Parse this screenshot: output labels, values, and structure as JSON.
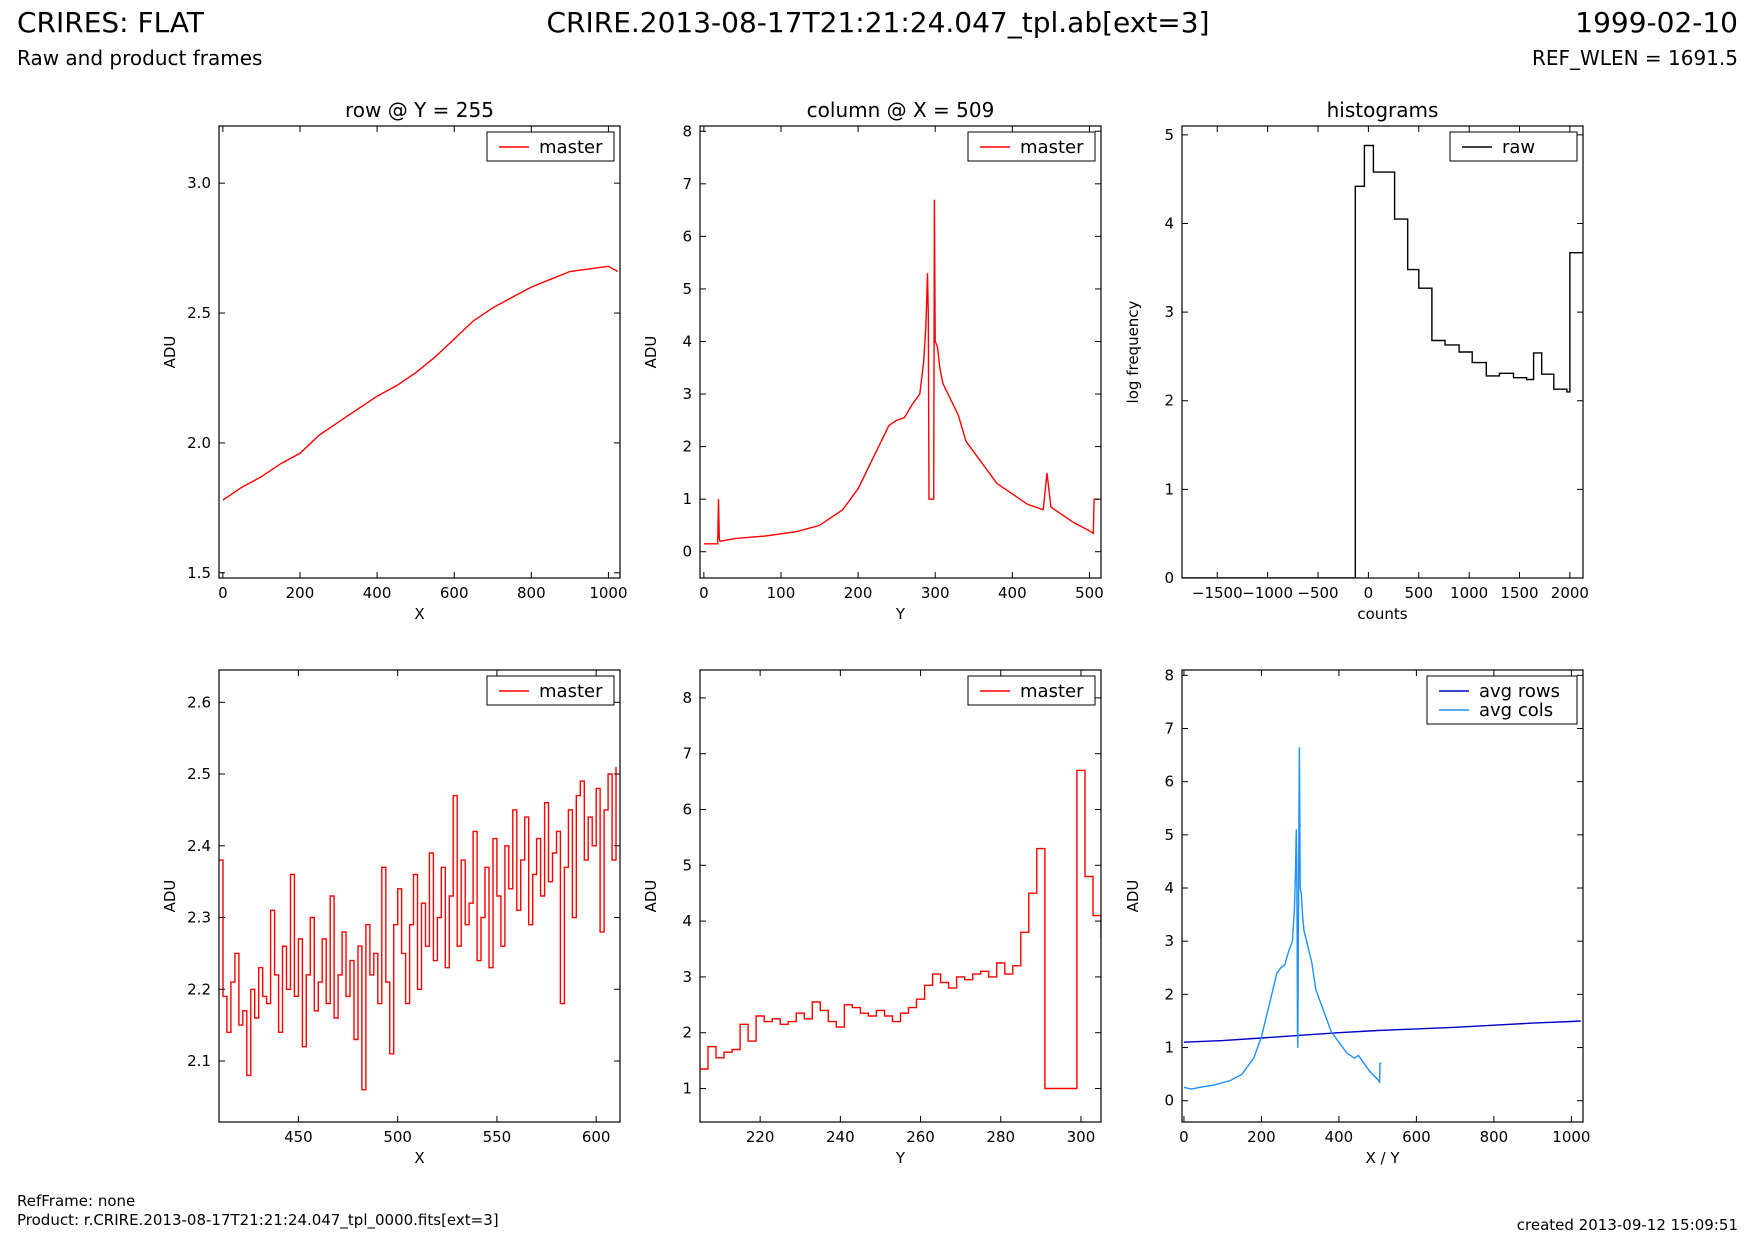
{
  "header": {
    "title_left": "CRIRES: FLAT",
    "subtitle_left": "Raw and product frames",
    "title_center": "CRIRE.2013-08-17T21:21:24.047_tpl.ab[ext=3]",
    "title_right": "1999-02-10",
    "subtitle_right": "REF_WLEN = 1691.5"
  },
  "footer": {
    "refframe": "RefFrame: none",
    "product": "Product: r.CRIRE.2013-08-17T21:21:24.047_tpl_0000.fits[ext=3]",
    "created": "created 2013-09-12 15:09:51"
  },
  "colors": {
    "red": "#ff0000",
    "dark_blue": "#0000cc",
    "light_blue": "#1e90ff",
    "black": "#000000"
  },
  "chart_data": [
    {
      "id": "row-full",
      "type": "line",
      "title": "row @ Y = 255",
      "xlabel": "X",
      "ylabel": "ADU",
      "xlim": [
        -10,
        1030
      ],
      "ylim": [
        1.48,
        3.22
      ],
      "xticks": [
        0,
        200,
        400,
        600,
        800,
        1000
      ],
      "yticks": [
        1.5,
        2.0,
        2.5,
        3.0
      ],
      "ytick_labels": [
        "1.5",
        "2.0",
        "2.5",
        "3.0"
      ],
      "legend_position": "top-right",
      "series": [
        {
          "name": "master",
          "color": "#ff0000",
          "step": false,
          "x": [
            0,
            50,
            100,
            150,
            200,
            250,
            300,
            350,
            400,
            450,
            500,
            550,
            600,
            650,
            700,
            750,
            800,
            850,
            900,
            950,
            1000,
            1024
          ],
          "y": [
            1.78,
            1.83,
            1.87,
            1.92,
            1.96,
            2.03,
            2.08,
            2.13,
            2.18,
            2.22,
            2.27,
            2.33,
            2.4,
            2.47,
            2.52,
            2.56,
            2.6,
            2.63,
            2.66,
            2.67,
            2.68,
            2.66
          ]
        }
      ]
    },
    {
      "id": "col-full",
      "type": "line",
      "title": "column @ X = 509",
      "xlabel": "Y",
      "ylabel": "ADU",
      "xlim": [
        -5,
        515
      ],
      "ylim": [
        -0.5,
        8.1
      ],
      "xticks": [
        0,
        100,
        200,
        300,
        400,
        500
      ],
      "yticks": [
        0,
        1,
        2,
        3,
        4,
        5,
        6,
        7,
        8
      ],
      "legend_position": "top-right",
      "series": [
        {
          "name": "master",
          "color": "#ff0000",
          "step": false,
          "x": [
            0,
            18,
            19,
            20,
            21,
            22,
            40,
            80,
            120,
            150,
            180,
            200,
            220,
            240,
            250,
            260,
            270,
            280,
            285,
            288,
            290,
            291,
            292,
            298,
            299,
            300,
            303,
            306,
            310,
            320,
            330,
            340,
            350,
            360,
            380,
            400,
            420,
            440,
            445,
            450,
            460,
            480,
            500,
            505,
            506,
            510,
            512
          ],
          "y": [
            0.15,
            0.15,
            1.0,
            0.25,
            0.2,
            0.2,
            0.25,
            0.3,
            0.38,
            0.5,
            0.8,
            1.2,
            1.8,
            2.4,
            2.5,
            2.55,
            2.8,
            3.0,
            3.6,
            4.3,
            5.3,
            4.5,
            1.0,
            1.0,
            6.7,
            4.0,
            3.9,
            3.5,
            3.2,
            2.9,
            2.6,
            2.1,
            1.9,
            1.7,
            1.3,
            1.1,
            0.9,
            0.8,
            1.5,
            0.85,
            0.75,
            0.55,
            0.4,
            0.35,
            1.0,
            1.0,
            1.0
          ]
        }
      ]
    },
    {
      "id": "histogram",
      "type": "line",
      "title": "histograms",
      "xlabel": "counts",
      "ylabel": "log frequency",
      "xlim": [
        -1850,
        2130
      ],
      "ylim": [
        0,
        5.1
      ],
      "xticks": [
        -1500,
        -1000,
        -500,
        0,
        500,
        1000,
        1500,
        2000
      ],
      "xtick_labels": [
        "−1500",
        "−1000",
        "−500",
        "0",
        "500",
        "1000",
        "1500",
        "2000"
      ],
      "yticks": [
        0,
        1,
        2,
        3,
        4,
        5
      ],
      "legend_position": "top-right",
      "series": [
        {
          "name": "raw",
          "color": "#000000",
          "step": true,
          "x": [
            -1850,
            -130,
            -130,
            -40,
            50,
            260,
            390,
            500,
            630,
            760,
            900,
            1030,
            1170,
            1300,
            1440,
            1570,
            1640,
            1720,
            1840,
            1970,
            2000,
            2130
          ],
          "y": [
            0,
            0,
            4.42,
            4.88,
            4.58,
            4.05,
            3.48,
            3.27,
            2.68,
            2.63,
            2.55,
            2.43,
            2.28,
            2.31,
            2.26,
            2.24,
            2.54,
            2.3,
            2.13,
            2.1,
            3.67,
            3.67
          ]
        }
      ]
    },
    {
      "id": "row-zoom",
      "type": "line",
      "title": "",
      "xlabel": "X",
      "ylabel": "ADU",
      "xlim": [
        410,
        612
      ],
      "ylim": [
        2.015,
        2.645
      ],
      "xticks": [
        450,
        500,
        550,
        600
      ],
      "yticks": [
        2.1,
        2.2,
        2.3,
        2.4,
        2.5,
        2.6
      ],
      "ytick_labels": [
        "2.1",
        "2.2",
        "2.3",
        "2.4",
        "2.5",
        "2.6"
      ],
      "legend_position": "top-right",
      "series": [
        {
          "name": "master",
          "color": "#ff0000",
          "step": true,
          "x": [
            410,
            412,
            414,
            416,
            418,
            420,
            422,
            424,
            426,
            428,
            430,
            432,
            434,
            436,
            438,
            440,
            442,
            444,
            446,
            448,
            450,
            452,
            454,
            456,
            458,
            460,
            462,
            464,
            466,
            468,
            470,
            472,
            474,
            476,
            478,
            480,
            482,
            484,
            486,
            488,
            490,
            492,
            494,
            496,
            498,
            500,
            502,
            504,
            506,
            508,
            510,
            512,
            514,
            516,
            518,
            520,
            522,
            524,
            526,
            528,
            530,
            532,
            534,
            536,
            538,
            540,
            542,
            544,
            546,
            548,
            550,
            552,
            554,
            556,
            558,
            560,
            562,
            564,
            566,
            568,
            570,
            572,
            574,
            576,
            578,
            580,
            582,
            584,
            586,
            588,
            590,
            592,
            594,
            596,
            598,
            600,
            602,
            604,
            606,
            608,
            610
          ],
          "y": [
            2.38,
            2.19,
            2.14,
            2.21,
            2.25,
            2.15,
            2.17,
            2.08,
            2.2,
            2.16,
            2.23,
            2.19,
            2.18,
            2.31,
            2.22,
            2.14,
            2.26,
            2.2,
            2.36,
            2.19,
            2.27,
            2.12,
            2.22,
            2.3,
            2.17,
            2.21,
            2.27,
            2.18,
            2.33,
            2.16,
            2.22,
            2.28,
            2.19,
            2.24,
            2.13,
            2.26,
            2.06,
            2.29,
            2.22,
            2.25,
            2.18,
            2.37,
            2.21,
            2.11,
            2.29,
            2.34,
            2.25,
            2.18,
            2.29,
            2.36,
            2.2,
            2.32,
            2.26,
            2.39,
            2.24,
            2.3,
            2.37,
            2.23,
            2.33,
            2.47,
            2.26,
            2.38,
            2.29,
            2.32,
            2.42,
            2.24,
            2.3,
            2.37,
            2.23,
            2.41,
            2.33,
            2.26,
            2.4,
            2.34,
            2.45,
            2.31,
            2.38,
            2.44,
            2.29,
            2.36,
            2.41,
            2.33,
            2.46,
            2.35,
            2.39,
            2.42,
            2.18,
            2.37,
            2.45,
            2.3,
            2.47,
            2.49,
            2.38,
            2.44,
            2.4,
            2.48,
            2.28,
            2.45,
            2.5,
            2.38,
            2.51
          ]
        }
      ]
    },
    {
      "id": "col-zoom",
      "type": "line",
      "title": "",
      "xlabel": "Y",
      "ylabel": "ADU",
      "xlim": [
        205,
        305
      ],
      "ylim": [
        0.4,
        8.5
      ],
      "xticks": [
        220,
        240,
        260,
        280,
        300
      ],
      "yticks": [
        1,
        2,
        3,
        4,
        5,
        6,
        7,
        8
      ],
      "legend_position": "top-right",
      "series": [
        {
          "name": "master",
          "color": "#ff0000",
          "step": true,
          "x": [
            205,
            207,
            209,
            211,
            213,
            215,
            217,
            219,
            221,
            223,
            225,
            227,
            229,
            231,
            233,
            235,
            237,
            239,
            241,
            243,
            245,
            247,
            249,
            251,
            253,
            255,
            257,
            259,
            261,
            263,
            265,
            267,
            269,
            271,
            273,
            275,
            277,
            279,
            281,
            283,
            285,
            287,
            289,
            291,
            293,
            295,
            297,
            299,
            301,
            303,
            305
          ],
          "y": [
            1.35,
            1.75,
            1.55,
            1.65,
            1.7,
            2.15,
            1.85,
            2.3,
            2.2,
            2.25,
            2.15,
            2.2,
            2.35,
            2.25,
            2.55,
            2.4,
            2.2,
            2.1,
            2.5,
            2.45,
            2.35,
            2.3,
            2.4,
            2.3,
            2.2,
            2.35,
            2.45,
            2.6,
            2.85,
            3.05,
            2.9,
            2.8,
            3.0,
            2.95,
            3.05,
            3.1,
            3.0,
            3.25,
            3.05,
            3.2,
            3.8,
            4.5,
            5.3,
            1.0,
            1.0,
            1.0,
            1.0,
            6.7,
            4.8,
            4.1,
            3.7
          ]
        }
      ]
    },
    {
      "id": "averages",
      "type": "line",
      "title": "",
      "xlabel": "X / Y",
      "ylabel": "ADU",
      "xlim": [
        -5,
        1030
      ],
      "ylim": [
        -0.4,
        8.1
      ],
      "xticks": [
        0,
        200,
        400,
        600,
        800,
        1000
      ],
      "yticks": [
        0,
        1,
        2,
        3,
        4,
        5,
        6,
        7,
        8
      ],
      "legend_position": "top-right",
      "series": [
        {
          "name": "avg rows",
          "color": "#0000cc",
          "step": false,
          "x": [
            0,
            100,
            200,
            300,
            400,
            500,
            600,
            700,
            800,
            900,
            1000,
            1024
          ],
          "y": [
            1.1,
            1.13,
            1.18,
            1.23,
            1.28,
            1.32,
            1.35,
            1.38,
            1.42,
            1.46,
            1.49,
            1.5
          ]
        },
        {
          "name": "avg cols",
          "color": "#1e90ff",
          "step": false,
          "x": [
            0,
            20,
            40,
            80,
            120,
            150,
            180,
            200,
            220,
            240,
            250,
            260,
            270,
            280,
            285,
            288,
            290,
            291,
            292,
            293,
            294,
            297,
            298,
            300,
            303,
            306,
            310,
            320,
            330,
            340,
            350,
            360,
            380,
            400,
            420,
            440,
            450,
            460,
            480,
            500,
            505,
            506,
            510
          ],
          "y": [
            0.25,
            0.22,
            0.25,
            0.3,
            0.38,
            0.5,
            0.8,
            1.2,
            1.8,
            2.4,
            2.5,
            2.55,
            2.8,
            3.0,
            3.6,
            4.3,
            5.1,
            4.5,
            3.3,
            1.2,
            1.0,
            5.5,
            6.65,
            4.0,
            3.9,
            3.5,
            3.2,
            2.9,
            2.6,
            2.1,
            1.9,
            1.7,
            1.3,
            1.1,
            0.9,
            0.8,
            0.85,
            0.75,
            0.55,
            0.4,
            0.35,
            0.7,
            0.7
          ]
        }
      ]
    }
  ]
}
